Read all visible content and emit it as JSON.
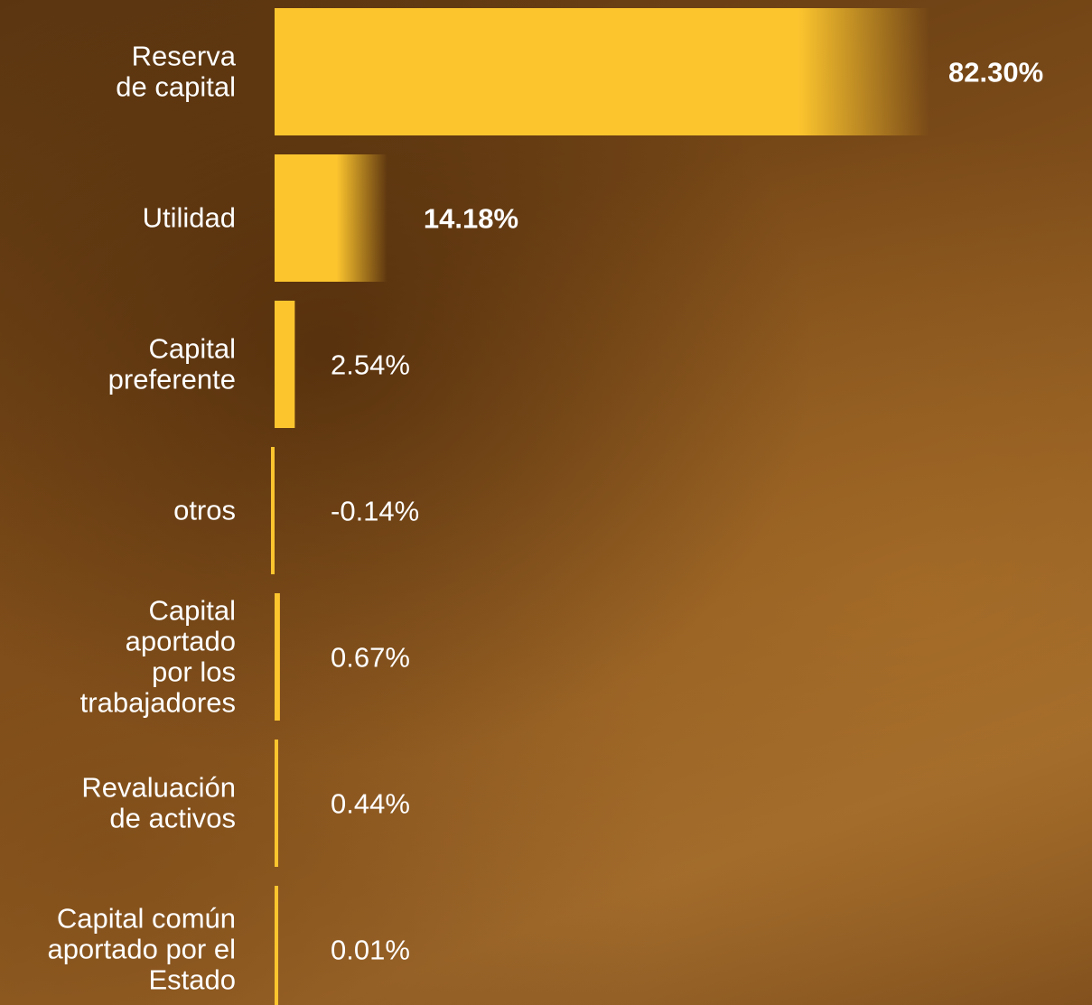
{
  "chart_data": {
    "type": "bar",
    "orientation": "horizontal",
    "categories": [
      "Reserva de capital",
      "Utilidad",
      "Capital preferente",
      "otros",
      "Capital aportado por los trabajadores",
      "Revaluación de activos",
      "Capital común aportado por el Estado"
    ],
    "category_lines": [
      [
        "Reserva",
        "de capital"
      ],
      [
        "Utilidad"
      ],
      [
        "Capital",
        "preferente"
      ],
      [
        "otros"
      ],
      [
        "Capital",
        "aportado",
        "por los",
        "trabajadores"
      ],
      [
        "Revaluación",
        "de activos"
      ],
      [
        "Capital común",
        "aportado por el",
        "Estado"
      ]
    ],
    "values": [
      82.3,
      14.18,
      2.54,
      -0.14,
      0.67,
      0.44,
      0.01
    ],
    "value_labels": [
      "82.30%",
      "14.18%",
      "2.54%",
      "-0.14%",
      "0.67%",
      "0.44%",
      "0.01%"
    ],
    "bold_values": [
      true,
      true,
      false,
      false,
      false,
      false,
      false
    ],
    "bar_color": "#fcc52e",
    "label_color": "#ffffff",
    "title": "",
    "xlabel": "",
    "ylabel": "",
    "grid": false,
    "legend": "none"
  }
}
